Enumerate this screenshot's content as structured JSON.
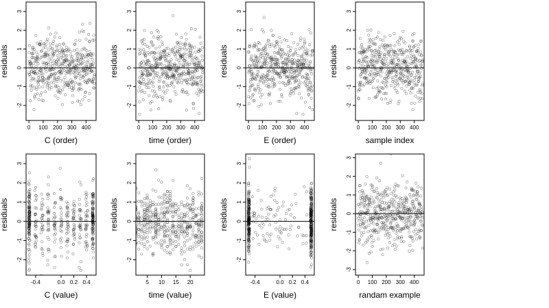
{
  "figure": {
    "layout": "2 rows x 4 columns",
    "point_style": "open circles, gray",
    "reference_line": "horizontal at residual 0"
  },
  "chart_data": [
    {
      "type": "scatter",
      "name": "C (order)",
      "xlabel": "C (order)",
      "ylabel": "residuals",
      "xlim": [
        -20,
        470
      ],
      "ylim": [
        -2.8,
        3.5
      ],
      "x_ticks": [
        0,
        100,
        200,
        300,
        400
      ],
      "y_ticks": [
        -2,
        -1,
        0,
        1,
        2,
        3
      ],
      "zero_line": true,
      "x_distribution": "index",
      "n_points": 480
    },
    {
      "type": "scatter",
      "name": "time (order)",
      "xlabel": "time (order)",
      "ylabel": "residuals",
      "xlim": [
        -20,
        470
      ],
      "ylim": [
        -2.8,
        3.5
      ],
      "x_ticks": [
        0,
        100,
        200,
        300,
        400
      ],
      "y_ticks": [
        -2,
        -1,
        0,
        1,
        2,
        3
      ],
      "zero_line": true,
      "x_distribution": "index",
      "n_points": 480
    },
    {
      "type": "scatter",
      "name": "E (order)",
      "xlabel": "E (order)",
      "ylabel": "residuals",
      "xlim": [
        -20,
        470
      ],
      "ylim": [
        -2.8,
        3.5
      ],
      "x_ticks": [
        0,
        100,
        200,
        300,
        400
      ],
      "y_ticks": [
        -2,
        -1,
        0,
        1,
        2,
        3
      ],
      "zero_line": true,
      "x_distribution": "index",
      "n_points": 480
    },
    {
      "type": "scatter",
      "name": "sample index",
      "xlabel": "sample index",
      "ylabel": "residuals",
      "xlim": [
        -20,
        470
      ],
      "ylim": [
        -2.8,
        3.5
      ],
      "x_ticks": [
        0,
        100,
        200,
        300,
        400
      ],
      "y_ticks": [
        -2,
        -1,
        0,
        1,
        2,
        3
      ],
      "zero_line": true,
      "x_distribution": "index",
      "n_points": 480
    },
    {
      "type": "scatter",
      "name": "C (value)",
      "xlabel": "C (value)",
      "ylabel": "residuals",
      "xlim": [
        -0.55,
        0.55
      ],
      "ylim": [
        -2.8,
        3.5
      ],
      "x_ticks": [
        -0.4,
        0.0,
        0.2,
        0.4
      ],
      "x_tick_labels": [
        "-0.4",
        "0.0",
        "0.2",
        "0.4"
      ],
      "y_ticks": [
        -2,
        -1,
        0,
        1,
        2,
        3
      ],
      "zero_line": true,
      "x_distribution": "clustered at -0.5, 0.5 and discrete levels",
      "n_points": 480
    },
    {
      "type": "scatter",
      "name": "time (value)",
      "xlabel": "time (value)",
      "ylabel": "residuals",
      "xlim": [
        1,
        25
      ],
      "ylim": [
        -2.8,
        3.5
      ],
      "x_ticks": [
        5,
        10,
        15,
        20
      ],
      "y_ticks": [
        -2,
        -1,
        0,
        1,
        2,
        3
      ],
      "zero_line": true,
      "x_distribution": "integer levels 1-24",
      "n_points": 480
    },
    {
      "type": "scatter",
      "name": "E (value)",
      "xlabel": "E (value)",
      "ylabel": "residuals",
      "xlim": [
        -0.55,
        0.55
      ],
      "ylim": [
        -2.8,
        3.5
      ],
      "x_ticks": [
        -0.4,
        0.0,
        0.2,
        0.4
      ],
      "x_tick_labels": [
        "-0.4",
        "0.0",
        "0.2",
        "0.4"
      ],
      "y_ticks": [
        -2,
        -1,
        0,
        1,
        2,
        3
      ],
      "zero_line": true,
      "x_distribution": "concentrated at -0.5 and 0.5, sparse between",
      "n_points": 480
    },
    {
      "type": "scatter",
      "name": "randam example",
      "xlabel": "randam example",
      "ylabel": "residuals",
      "xlim": [
        -20,
        470
      ],
      "ylim": [
        -3.3,
        3.2
      ],
      "x_ticks": [
        0,
        100,
        200,
        300,
        400
      ],
      "y_ticks": [
        -3,
        -2,
        -1,
        0,
        1,
        2,
        3
      ],
      "zero_line": true,
      "x_distribution": "index",
      "n_points": 480
    }
  ]
}
